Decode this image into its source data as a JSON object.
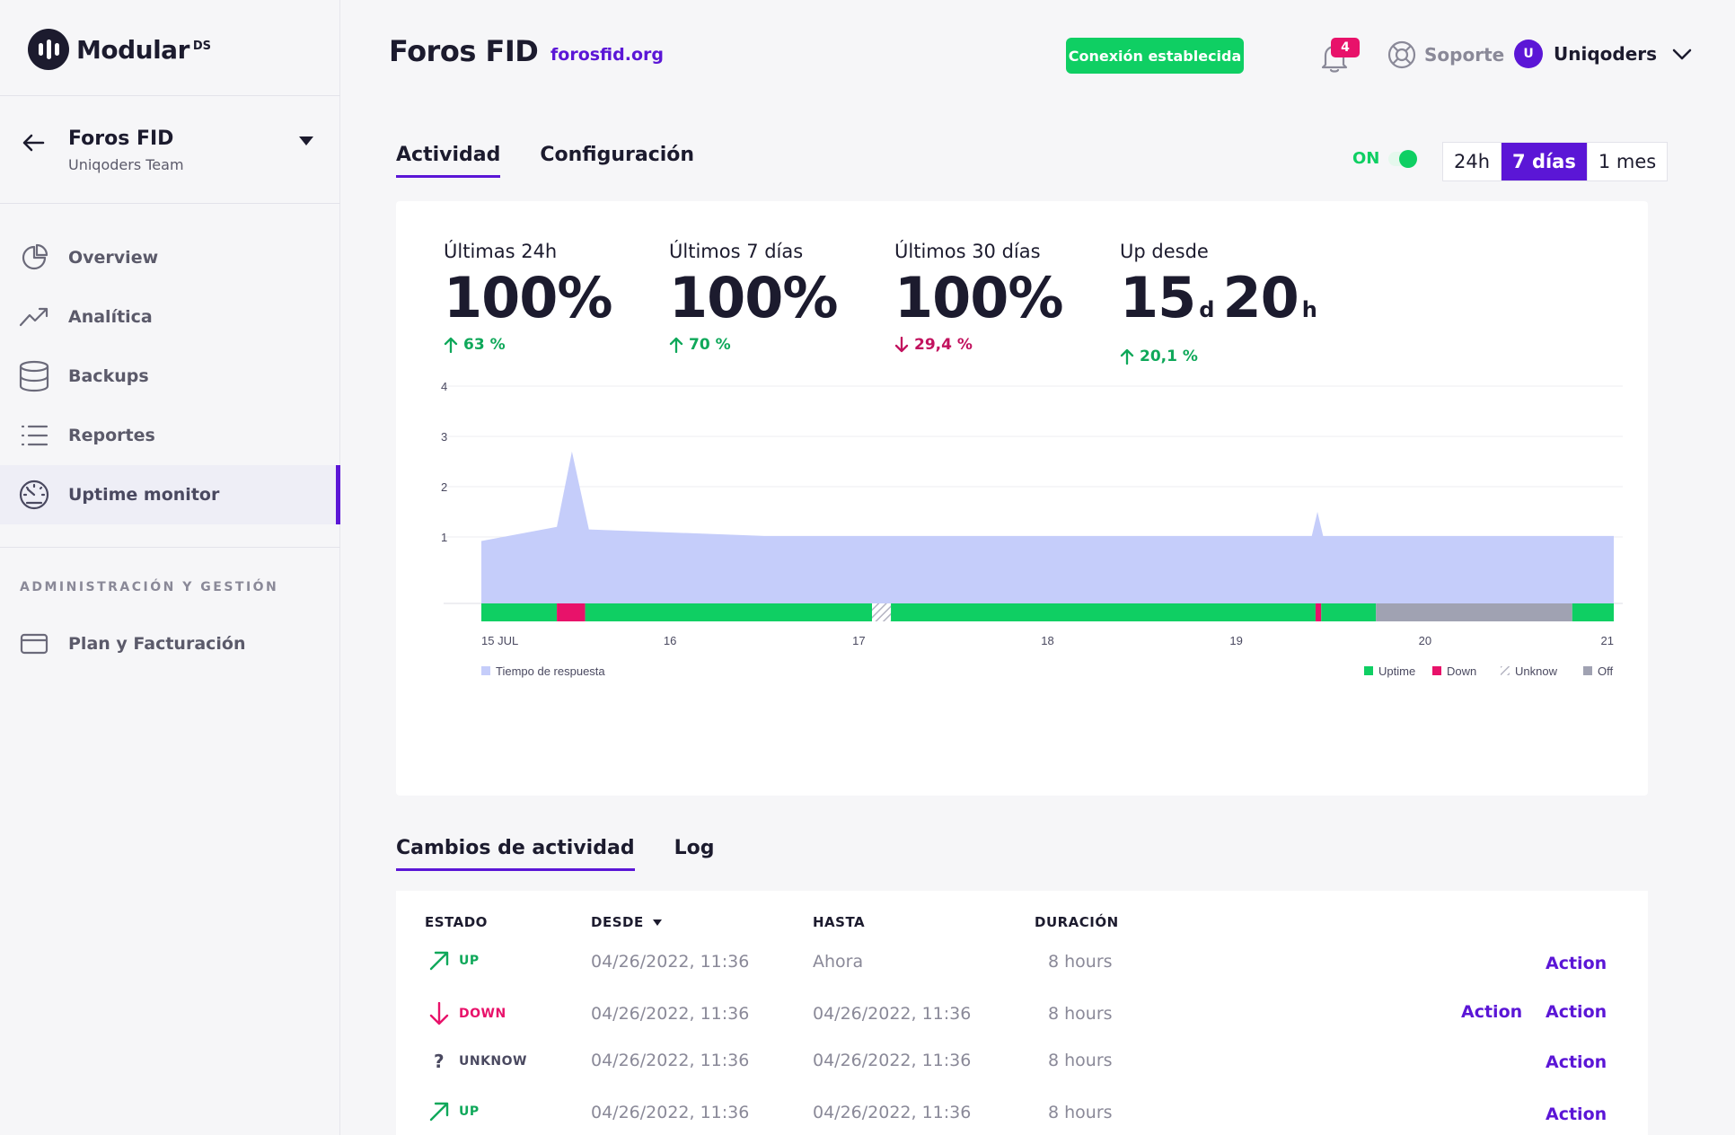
{
  "brand": {
    "name": "Modular",
    "sup": "DS"
  },
  "site": {
    "name": "Foros FID",
    "team": "Uniqoders Team"
  },
  "nav": [
    {
      "label": "Overview",
      "icon": "pie-chart-icon"
    },
    {
      "label": "Analítica",
      "icon": "trend-icon"
    },
    {
      "label": "Backups",
      "icon": "database-icon"
    },
    {
      "label": "Reportes",
      "icon": "list-icon"
    },
    {
      "label": "Uptime monitor",
      "icon": "gauge-icon",
      "active": true
    }
  ],
  "admin_section": {
    "title": "ADMINISTRACIÓN Y GESTIÓN",
    "items": [
      {
        "label": "Plan y Facturación",
        "icon": "credit-card-icon"
      }
    ]
  },
  "header": {
    "title": "Foros FID",
    "url": "forosfid.org",
    "connection": "Conexión establecida",
    "notifications": "4",
    "support": "Soporte",
    "user_initial": "U",
    "user_name": "Uniqoders"
  },
  "tabs": [
    "Actividad",
    "Configuración"
  ],
  "toggle_label": "ON",
  "ranges": [
    "24h",
    "7 días",
    "1 mes"
  ],
  "stats": [
    {
      "label": "Últimas 24h",
      "value": "100%",
      "trend": "63 %",
      "dir": "up"
    },
    {
      "label": "Últimos 7 días",
      "value": "100%",
      "trend": "70 %",
      "dir": "up"
    },
    {
      "label": "Últimos 30 días",
      "value": "100%",
      "trend": "29,4 %",
      "dir": "down"
    },
    {
      "label": "Up desde",
      "days": "15",
      "days_unit": "d",
      "hours": "20",
      "hours_unit": "h",
      "trend": "20,1 %",
      "dir": "up"
    }
  ],
  "chart_data": {
    "type": "area",
    "y_ticks": [
      "1",
      "2",
      "3",
      "4"
    ],
    "ylim": [
      0,
      4
    ],
    "x_ticks": [
      "15 JUL",
      "16",
      "17",
      "18",
      "19",
      "20",
      "21"
    ],
    "xlim": [
      15,
      21
    ],
    "response_series": {
      "name": "Tiempo de respuesta",
      "x": [
        15.0,
        15.4,
        15.48,
        15.57,
        16.5,
        17.0,
        18.0,
        19.0,
        19.4,
        19.43,
        19.46,
        20.0,
        21.0
      ],
      "y": [
        0.92,
        1.2,
        2.7,
        1.15,
        1.02,
        1.02,
        1.02,
        1.02,
        1.02,
        1.5,
        1.02,
        1.02,
        1.02
      ]
    },
    "status_segments": [
      {
        "from": 15.0,
        "to": 15.4,
        "status": "uptime"
      },
      {
        "from": 15.4,
        "to": 15.55,
        "status": "down"
      },
      {
        "from": 15.55,
        "to": 17.07,
        "status": "uptime"
      },
      {
        "from": 17.07,
        "to": 17.17,
        "status": "unknow"
      },
      {
        "from": 17.17,
        "to": 19.42,
        "status": "uptime"
      },
      {
        "from": 19.42,
        "to": 19.45,
        "status": "down"
      },
      {
        "from": 19.45,
        "to": 19.74,
        "status": "uptime"
      },
      {
        "from": 19.74,
        "to": 20.78,
        "status": "off"
      },
      {
        "from": 20.78,
        "to": 21.0,
        "status": "uptime"
      }
    ],
    "legend_left": "Tiempo de respuesta",
    "legend": [
      {
        "label": "Uptime",
        "key": "uptime"
      },
      {
        "label": "Down",
        "key": "down"
      },
      {
        "label": "Unknow",
        "key": "unknow"
      },
      {
        "label": "Off",
        "key": "off"
      }
    ],
    "colors": {
      "area": "#c5cdfa",
      "uptime": "#0fcf63",
      "down": "#e8126a",
      "off": "#a0a2b2",
      "grid": "#ececf2"
    }
  },
  "lower_tabs": [
    "Cambios de actividad",
    "Log"
  ],
  "table": {
    "columns": [
      "ESTADO",
      "DESDE",
      "HASTA",
      "DURACIÓN"
    ],
    "rows": [
      {
        "state": "UP",
        "desde": "04/26/2022, 11:36",
        "hasta": "Ahora",
        "duracion": "8 hours",
        "actions": [
          "Action"
        ]
      },
      {
        "state": "DOWN",
        "desde": "04/26/2022, 11:36",
        "hasta": "04/26/2022, 11:36",
        "duracion": "8 hours",
        "actions": [
          "Action",
          "Action"
        ]
      },
      {
        "state": "UNKNOW",
        "desde": "04/26/2022, 11:36",
        "hasta": "04/26/2022, 11:36",
        "duracion": "8 hours",
        "actions": [
          "Action"
        ]
      },
      {
        "state": "UP",
        "desde": "04/26/2022, 11:36",
        "hasta": "04/26/2022, 11:36",
        "duracion": "8 hours",
        "actions": [
          "Action"
        ]
      }
    ]
  }
}
